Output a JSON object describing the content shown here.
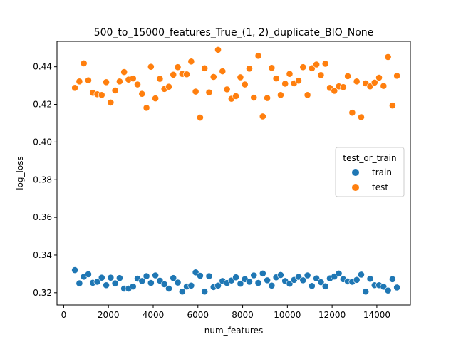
{
  "chart_data": {
    "type": "scatter",
    "title": "500_to_15000_features_True_(1, 2)_duplicate_BIO_None",
    "xlabel": "num_features",
    "ylabel": "log_loss",
    "xlim": [
      -300,
      15500
    ],
    "ylim": [
      0.3135,
      0.4535
    ],
    "x_ticks": [
      0,
      2000,
      4000,
      6000,
      8000,
      10000,
      12000,
      14000
    ],
    "y_ticks": [
      0.32,
      0.34,
      0.36,
      0.38,
      0.4,
      0.42,
      0.44
    ],
    "y_tick_labels": [
      "0.32",
      "0.34",
      "0.36",
      "0.38",
      "0.40",
      "0.42",
      "0.44"
    ],
    "grid": false,
    "legend": {
      "title": "test_or_train",
      "placement": "right",
      "entries": [
        {
          "name": "train",
          "color": "#1f77b4"
        },
        {
          "name": "test",
          "color": "#ff7f0e"
        }
      ]
    },
    "series": [
      {
        "name": "train",
        "color": "#1f77b4",
        "x": [
          500,
          700,
          900,
          1100,
          1300,
          1500,
          1700,
          1900,
          2100,
          2300,
          2500,
          2700,
          2900,
          3100,
          3300,
          3500,
          3700,
          3900,
          4100,
          4300,
          4500,
          4700,
          4900,
          5100,
          5300,
          5500,
          5700,
          5900,
          6100,
          6300,
          6500,
          6700,
          6900,
          7100,
          7300,
          7500,
          7700,
          7900,
          8100,
          8300,
          8500,
          8700,
          8900,
          9100,
          9300,
          9500,
          9700,
          9900,
          10100,
          10300,
          10500,
          10700,
          10900,
          11100,
          11300,
          11500,
          11700,
          11900,
          12100,
          12300,
          12500,
          12700,
          12900,
          13100,
          13300,
          13500,
          13700,
          13900,
          14100,
          14300,
          14500,
          14700,
          14900
        ],
        "y": [
          0.332,
          0.325,
          0.3285,
          0.3298,
          0.3253,
          0.3258,
          0.328,
          0.324,
          0.328,
          0.325,
          0.3278,
          0.3222,
          0.3222,
          0.3233,
          0.3275,
          0.3262,
          0.3288,
          0.3252,
          0.3292,
          0.3264,
          0.3245,
          0.3222,
          0.3278,
          0.3254,
          0.3206,
          0.3233,
          0.3238,
          0.3308,
          0.329,
          0.3206,
          0.3288,
          0.323,
          0.3238,
          0.3262,
          0.3252,
          0.3265,
          0.3282,
          0.3248,
          0.3272,
          0.3258,
          0.3292,
          0.3252,
          0.3302,
          0.3266,
          0.3238,
          0.3282,
          0.3294,
          0.3262,
          0.3248,
          0.3268,
          0.3284,
          0.3266,
          0.3292,
          0.3236,
          0.3276,
          0.3256,
          0.3234,
          0.3276,
          0.3286,
          0.3302,
          0.3272,
          0.326,
          0.3258,
          0.3268,
          0.3296,
          0.3206,
          0.3274,
          0.324,
          0.324,
          0.3232,
          0.3212,
          0.3272,
          0.3228
        ]
      },
      {
        "name": "test",
        "color": "#ff7f0e",
        "x": [
          500,
          700,
          900,
          1100,
          1300,
          1500,
          1700,
          1900,
          2100,
          2300,
          2500,
          2700,
          2900,
          3100,
          3300,
          3500,
          3700,
          3900,
          4100,
          4300,
          4500,
          4700,
          4900,
          5100,
          5300,
          5500,
          5700,
          5900,
          6100,
          6300,
          6500,
          6700,
          6900,
          7100,
          7300,
          7500,
          7700,
          7900,
          8100,
          8300,
          8500,
          8700,
          8900,
          9100,
          9300,
          9500,
          9700,
          9900,
          10100,
          10300,
          10500,
          10700,
          10900,
          11100,
          11300,
          11500,
          11700,
          11900,
          12100,
          12300,
          12500,
          12700,
          12900,
          13100,
          13300,
          13500,
          13700,
          13900,
          14100,
          14300,
          14500,
          14700,
          14900
        ],
        "y": [
          0.4288,
          0.4322,
          0.4418,
          0.4328,
          0.4262,
          0.4254,
          0.425,
          0.4318,
          0.421,
          0.4274,
          0.4322,
          0.4372,
          0.4332,
          0.4338,
          0.4306,
          0.4256,
          0.4182,
          0.44,
          0.4232,
          0.4336,
          0.4282,
          0.4294,
          0.4358,
          0.4398,
          0.4362,
          0.436,
          0.4428,
          0.4268,
          0.413,
          0.4392,
          0.4264,
          0.4346,
          0.449,
          0.4376,
          0.428,
          0.423,
          0.4244,
          0.4344,
          0.4306,
          0.439,
          0.4236,
          0.4458,
          0.4136,
          0.4234,
          0.4394,
          0.4338,
          0.425,
          0.431,
          0.4362,
          0.4312,
          0.4326,
          0.4398,
          0.425,
          0.4392,
          0.4412,
          0.4356,
          0.4416,
          0.4288,
          0.4272,
          0.4296,
          0.4292,
          0.435,
          0.4156,
          0.4322,
          0.4132,
          0.4312,
          0.4296,
          0.4316,
          0.4342,
          0.4298,
          0.4452,
          0.4194,
          0.4352
        ]
      }
    ]
  }
}
